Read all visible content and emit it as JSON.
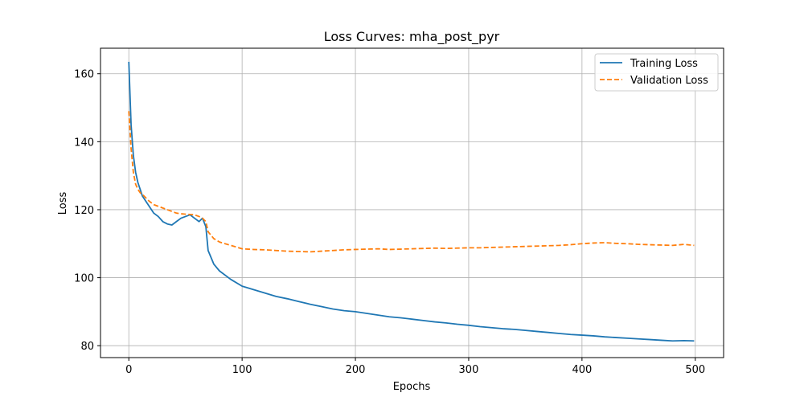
{
  "chart_data": {
    "type": "line",
    "title": "Loss Curves: mha_post_pyr",
    "xlabel": "Epochs",
    "ylabel": "Loss",
    "xlim": [
      -25,
      525
    ],
    "ylim": [
      76.5,
      167.5
    ],
    "xticks": [
      0,
      100,
      200,
      300,
      400,
      500
    ],
    "yticks": [
      80,
      100,
      120,
      140,
      160
    ],
    "grid": true,
    "legend_position": "top-right",
    "series": [
      {
        "name": "Training Loss",
        "color": "#1f77b4",
        "style": "solid",
        "x": [
          0,
          2,
          4,
          6,
          8,
          10,
          12,
          15,
          18,
          22,
          26,
          30,
          34,
          38,
          42,
          46,
          50,
          54,
          58,
          62,
          65,
          68,
          70,
          75,
          80,
          90,
          100,
          110,
          120,
          130,
          140,
          150,
          160,
          170,
          180,
          190,
          200,
          210,
          220,
          230,
          240,
          250,
          260,
          270,
          280,
          290,
          300,
          310,
          320,
          330,
          340,
          350,
          360,
          370,
          380,
          390,
          400,
          410,
          420,
          430,
          440,
          450,
          460,
          470,
          480,
          490,
          499
        ],
        "y": [
          163.5,
          145,
          136,
          131,
          128,
          126,
          124,
          122.5,
          121,
          119,
          118,
          116.5,
          115.8,
          115.5,
          116.5,
          117.5,
          118,
          118.5,
          117.5,
          116.5,
          117.5,
          115,
          108,
          104,
          102,
          99.5,
          97.5,
          96.5,
          95.5,
          94.5,
          93.8,
          93,
          92.2,
          91.5,
          90.8,
          90.3,
          90,
          89.5,
          89,
          88.5,
          88.2,
          87.8,
          87.4,
          87,
          86.7,
          86.3,
          86,
          85.6,
          85.3,
          85,
          84.8,
          84.5,
          84.2,
          83.9,
          83.6,
          83.3,
          83.1,
          82.9,
          82.6,
          82.4,
          82.2,
          82,
          81.8,
          81.6,
          81.4,
          81.5,
          81.4
        ]
      },
      {
        "name": "Validation Loss",
        "color": "#ff7f0e",
        "style": "dashed",
        "x": [
          0,
          2,
          4,
          6,
          8,
          10,
          12,
          15,
          18,
          22,
          26,
          30,
          34,
          38,
          42,
          46,
          50,
          54,
          58,
          62,
          65,
          68,
          70,
          75,
          80,
          90,
          100,
          110,
          120,
          130,
          140,
          150,
          160,
          170,
          180,
          190,
          200,
          210,
          220,
          230,
          240,
          250,
          260,
          270,
          280,
          290,
          300,
          310,
          320,
          330,
          340,
          350,
          360,
          370,
          380,
          390,
          400,
          410,
          420,
          430,
          440,
          450,
          460,
          470,
          480,
          490,
          499
        ],
        "y": [
          149,
          138,
          131,
          127.5,
          126,
          125,
          124.5,
          123.5,
          122.5,
          121.5,
          121,
          120.5,
          120,
          119.5,
          119,
          118.8,
          118.7,
          118.6,
          118.5,
          118,
          117.5,
          116.5,
          113.5,
          111.5,
          110.5,
          109.5,
          108.5,
          108.3,
          108.2,
          108,
          107.8,
          107.7,
          107.6,
          107.8,
          108,
          108.2,
          108.3,
          108.4,
          108.5,
          108.3,
          108.4,
          108.5,
          108.6,
          108.7,
          108.6,
          108.7,
          108.8,
          108.8,
          108.9,
          109,
          109.1,
          109.2,
          109.3,
          109.4,
          109.5,
          109.7,
          110,
          110.2,
          110.3,
          110.1,
          110,
          109.8,
          109.7,
          109.6,
          109.5,
          109.8,
          109.5
        ]
      }
    ]
  }
}
